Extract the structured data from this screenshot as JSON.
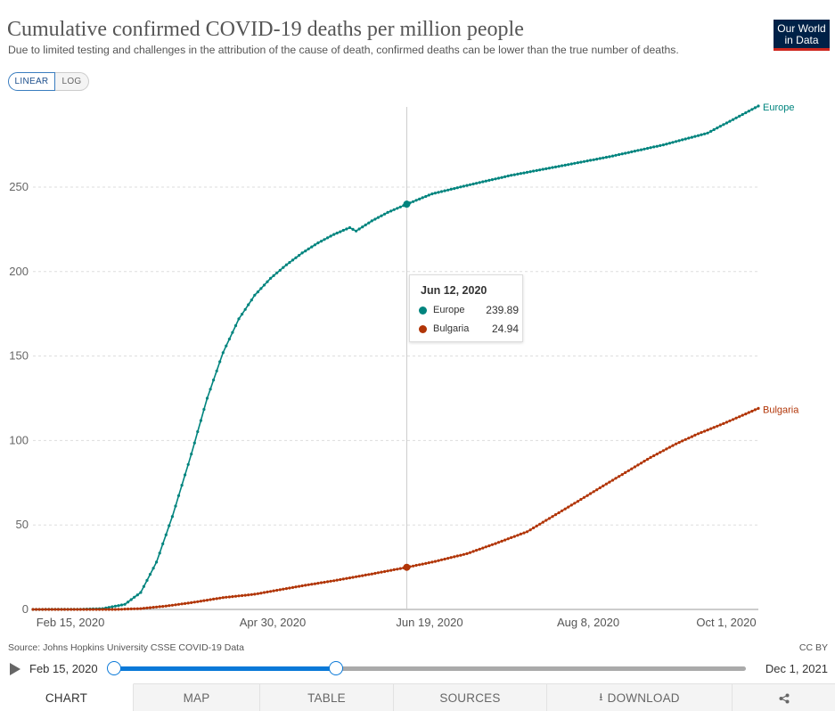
{
  "header": {
    "title": "Cumulative confirmed COVID-19 deaths per million people",
    "subtitle": "Due to limited testing and challenges in the attribution of the cause of death, confirmed deaths can be lower than the true number of deaths.",
    "logo_line1": "Our World",
    "logo_line2": "in Data",
    "logo_color": "#002147",
    "logo_accent": "#ce261e"
  },
  "scale_toggle": {
    "linear_label": "LINEAR",
    "log_label": "LOG",
    "selected": "LINEAR"
  },
  "chart_data": {
    "type": "line",
    "title": "Cumulative confirmed COVID-19 deaths per million people",
    "x_range": [
      "2020-02-15",
      "2020-10-01"
    ],
    "ylim": [
      0,
      300
    ],
    "yticks": [
      0,
      50,
      100,
      150,
      200,
      250
    ],
    "xtick_labels": [
      "Feb 15, 2020",
      "Apr 30, 2020",
      "Jun 19, 2020",
      "Aug 8, 2020",
      "Oct 1, 2020"
    ],
    "grid": true,
    "legend": "line-end labels",
    "series": [
      {
        "name": "Europe",
        "color": "#00847e",
        "points": [
          [
            "2020-02-15",
            0
          ],
          [
            "2020-03-01",
            0.1
          ],
          [
            "2020-03-08",
            0.5
          ],
          [
            "2020-03-15",
            3
          ],
          [
            "2020-03-20",
            10
          ],
          [
            "2020-03-25",
            28
          ],
          [
            "2020-03-30",
            55
          ],
          [
            "2020-04-05",
            92
          ],
          [
            "2020-04-10",
            125
          ],
          [
            "2020-04-15",
            152
          ],
          [
            "2020-04-20",
            172
          ],
          [
            "2020-04-25",
            186
          ],
          [
            "2020-04-30",
            196
          ],
          [
            "2020-05-05",
            204
          ],
          [
            "2020-05-10",
            211
          ],
          [
            "2020-05-15",
            217
          ],
          [
            "2020-05-20",
            222
          ],
          [
            "2020-05-25",
            226
          ],
          [
            "2020-05-27",
            224
          ],
          [
            "2020-06-01",
            230
          ],
          [
            "2020-06-06",
            235
          ],
          [
            "2020-06-12",
            239.89
          ],
          [
            "2020-06-20",
            246
          ],
          [
            "2020-07-01",
            251
          ],
          [
            "2020-07-15",
            257
          ],
          [
            "2020-08-01",
            263
          ],
          [
            "2020-08-15",
            268
          ],
          [
            "2020-09-01",
            275
          ],
          [
            "2020-09-15",
            282
          ],
          [
            "2020-10-01",
            298
          ]
        ]
      },
      {
        "name": "Bulgaria",
        "color": "#b13507",
        "points": [
          [
            "2020-02-15",
            0
          ],
          [
            "2020-03-12",
            0
          ],
          [
            "2020-03-20",
            0.5
          ],
          [
            "2020-03-28",
            2
          ],
          [
            "2020-04-05",
            4
          ],
          [
            "2020-04-15",
            7
          ],
          [
            "2020-04-25",
            9
          ],
          [
            "2020-05-01",
            11
          ],
          [
            "2020-05-10",
            14
          ],
          [
            "2020-05-20",
            17
          ],
          [
            "2020-06-01",
            21
          ],
          [
            "2020-06-12",
            24.94
          ],
          [
            "2020-06-20",
            28
          ],
          [
            "2020-07-01",
            33
          ],
          [
            "2020-07-10",
            39
          ],
          [
            "2020-07-20",
            46
          ],
          [
            "2020-07-28",
            55
          ],
          [
            "2020-08-05",
            64
          ],
          [
            "2020-08-12",
            72
          ],
          [
            "2020-08-20",
            81
          ],
          [
            "2020-08-28",
            90
          ],
          [
            "2020-09-05",
            98
          ],
          [
            "2020-09-12",
            104
          ],
          [
            "2020-09-20",
            110
          ],
          [
            "2020-10-01",
            119
          ]
        ]
      }
    ],
    "hover_date": "2020-06-12"
  },
  "tooltip": {
    "date": "Jun 12, 2020",
    "rows": [
      {
        "name": "Europe",
        "value": "239.89",
        "color": "#00847e"
      },
      {
        "name": "Bulgaria",
        "value": "24.94",
        "color": "#b13507"
      }
    ]
  },
  "footer": {
    "source": "Source: Johns Hopkins University CSSE COVID-19 Data",
    "license": "CC BY"
  },
  "timeline": {
    "start_label": "Feb 15, 2020",
    "end_label": "Dec 1, 2021"
  },
  "tabs": {
    "chart": "CHART",
    "map": "MAP",
    "table": "TABLE",
    "sources": "SOURCES",
    "download": "DOWNLOAD",
    "share_icon": "share-icon",
    "download_icon": "download-icon"
  }
}
